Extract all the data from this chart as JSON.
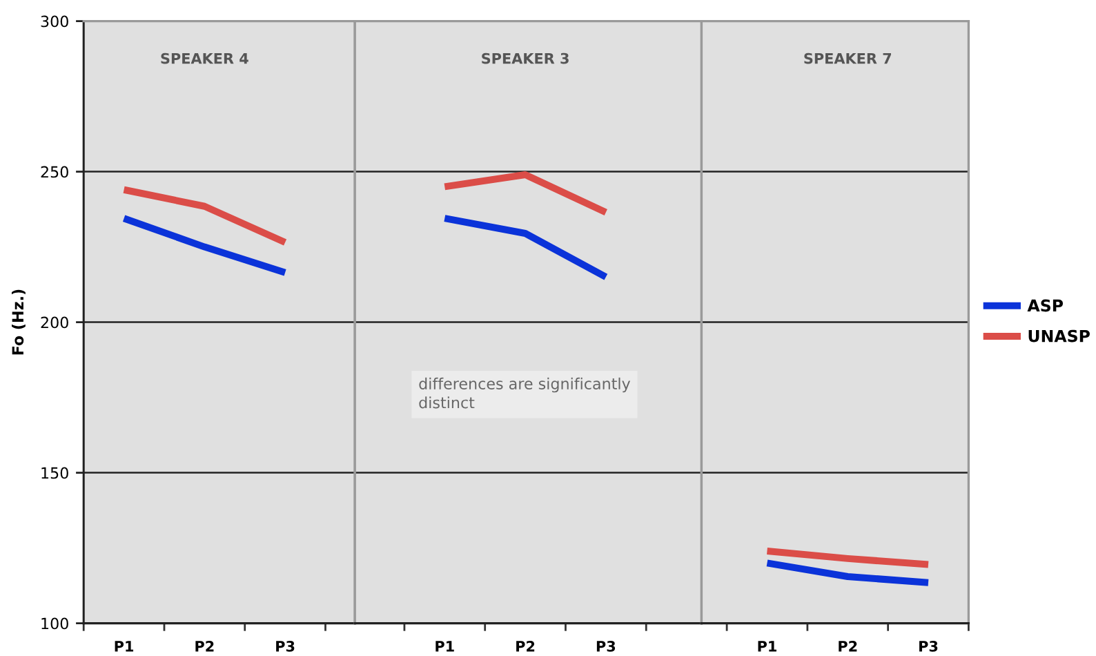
{
  "chart_data": [
    {
      "type": "line",
      "title": "SPEAKER 4",
      "ylabel": "Fo (Hz.)",
      "categories": [
        "P1",
        "P2",
        "P3"
      ],
      "series": [
        {
          "color": "#0b33d9",
          "values": [
            234.5,
            225,
            216.5
          ]
        },
        {
          "color": "#db4d48",
          "values": [
            244,
            238.5,
            226.5
          ]
        }
      ],
      "ylim": [
        100,
        300
      ],
      "yticks": [
        100,
        150,
        200,
        250,
        300
      ],
      "grid": "y"
    },
    {
      "type": "line",
      "title": "SPEAKER 3",
      "categories": [
        "P1",
        "P2",
        "P3"
      ],
      "series": [
        {
          "color": "#0b33d9",
          "values": [
            234.5,
            229.5,
            215
          ]
        },
        {
          "color": "#db4d48",
          "values": [
            245,
            249,
            236.5
          ]
        }
      ],
      "annotations": [
        "differences are significantly\ndistinct"
      ],
      "ylim": [
        100,
        300
      ],
      "yticks": [
        100,
        150,
        200,
        250,
        300
      ],
      "grid": "y",
      "tick_labels": "x"
    },
    {
      "type": "line",
      "title": "SPEAKER 7",
      "categories": [
        "P1",
        "P2",
        "P3"
      ],
      "series": [
        {
          "name": "ASP",
          "color": "#0b33d9",
          "values": [
            120,
            115.5,
            113.5
          ]
        },
        {
          "name": "UNASP",
          "color": "#db4d48",
          "values": [
            124,
            121.5,
            119.5
          ]
        }
      ],
      "ylim": [
        100,
        300
      ],
      "yticks": [
        100,
        150,
        200,
        250,
        300
      ],
      "grid": "y",
      "tick_labels": "x",
      "legend": "right"
    }
  ]
}
